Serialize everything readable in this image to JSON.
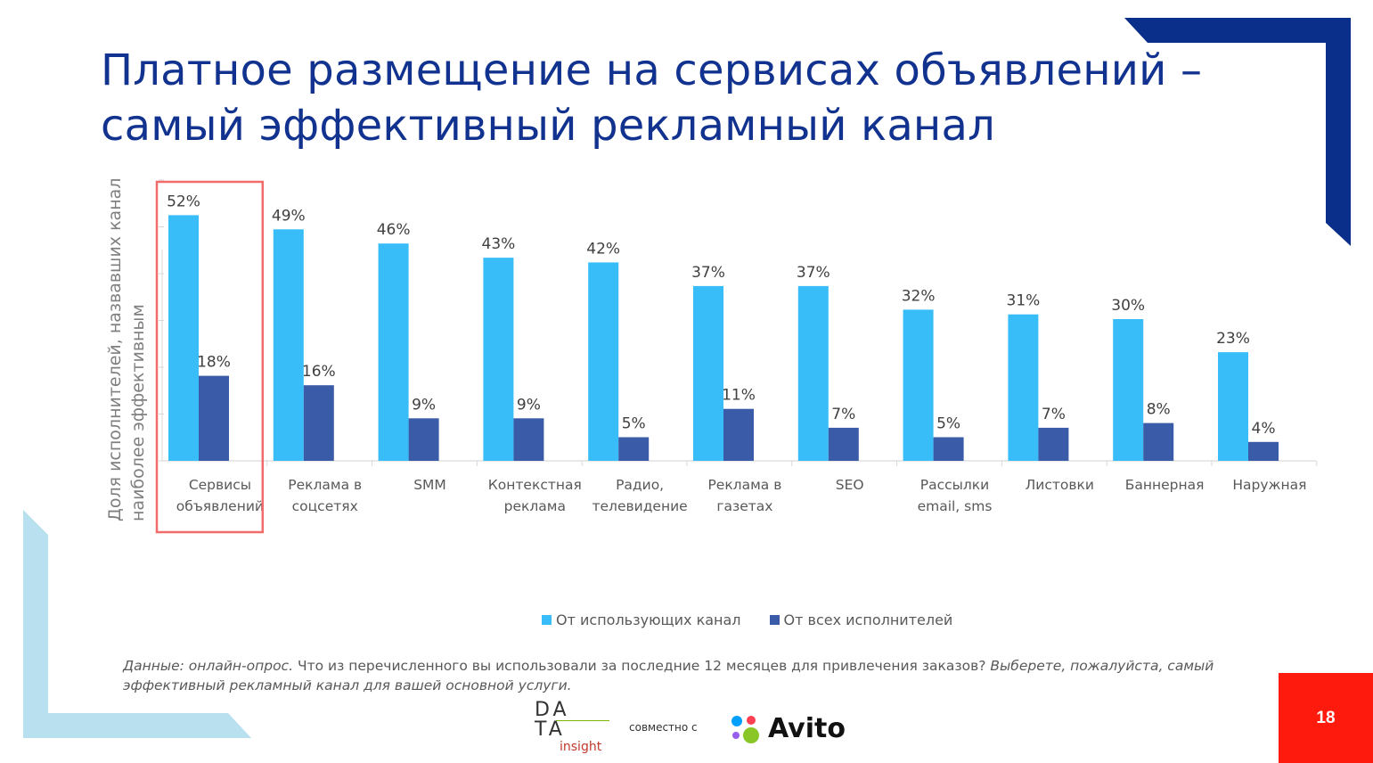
{
  "slide": {
    "title_line1": "Платное размещение на сервисах объявлений –",
    "title_line2": "самый эффективный рекламный канал",
    "page_number": "18"
  },
  "source_note": {
    "label": "Данные: онлайн-опрос.",
    "question": " Что из перечисленного вы использовали за последние 12 месяцев для привлечения заказов? ",
    "instruction": "Выберете, пожалуйста, самый эффективный рекламный канал для вашей основной услуги."
  },
  "logos": {
    "data_line1": "DA",
    "data_line2": "TA",
    "data_line3": "insight",
    "jointly": "совместно с",
    "partner": "Avito"
  },
  "colors": {
    "title": "#12328f",
    "series1": "#38bdf8",
    "series2": "#3a5ca8",
    "highlight_box": "#f26b6b",
    "page_badge": "#ff1a0e",
    "deco_dark": "#0a2f8a",
    "deco_light": "#b8e0ef"
  },
  "chart_data": {
    "type": "bar",
    "ylabel_line1": "Доля исполнителей, назвавших  канал",
    "ylabel_line2": "наиболее эффективным",
    "categories": [
      [
        "Сервисы",
        "объявлений"
      ],
      [
        "Реклама в",
        "соцсетях"
      ],
      [
        "SMM"
      ],
      [
        "Контекстная",
        "реклама"
      ],
      [
        "Радио,",
        "телевидение"
      ],
      [
        "Реклама в",
        "газетах"
      ],
      [
        "SEO"
      ],
      [
        "Рассылки",
        "email, sms"
      ],
      [
        "Листовки"
      ],
      [
        "Баннерная"
      ],
      [
        "Наружная"
      ]
    ],
    "series": [
      {
        "name": "От использующих канал",
        "values": [
          52,
          49,
          46,
          43,
          42,
          37,
          37,
          32,
          31,
          30,
          23
        ]
      },
      {
        "name": "От всех исполнителей",
        "values": [
          18,
          16,
          9,
          9,
          5,
          11,
          7,
          5,
          7,
          8,
          4
        ]
      }
    ],
    "value_suffix": "%",
    "highlighted_category_index": 0,
    "legend_position": "bottom"
  }
}
